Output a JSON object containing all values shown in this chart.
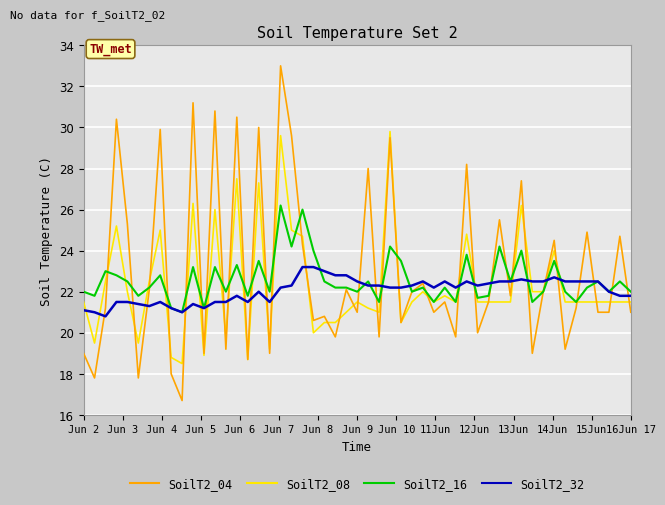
{
  "title": "Soil Temperature Set 2",
  "no_data_label": "No data for f_SoilT2_02",
  "tw_met_label": "TW_met",
  "xlabel": "Time",
  "ylabel": "Soil Temperature (C)",
  "ylim": [
    16,
    34
  ],
  "series_colors": {
    "SoilT2_04": "#FFA500",
    "SoilT2_08": "#FFE800",
    "SoilT2_16": "#00CC00",
    "SoilT2_32": "#0000BB"
  },
  "x_tick_labels": [
    "Jun 2",
    "Jun 3",
    "Jun 4",
    "Jun 5",
    "Jun 6",
    "Jun 7",
    "Jun 8",
    "Jun 9",
    "Jun 10",
    "11Jun",
    "12Jun",
    "13Jun",
    "14Jun",
    "15Jun",
    "16Jun 17"
  ],
  "SoilT2_04": [
    19.0,
    17.8,
    21.2,
    30.4,
    25.3,
    17.8,
    22.1,
    29.9,
    18.0,
    16.7,
    31.2,
    19.0,
    30.8,
    19.2,
    30.5,
    18.7,
    30.0,
    19.0,
    33.0,
    29.6,
    24.3,
    20.6,
    20.8,
    19.8,
    22.1,
    21.0,
    28.0,
    19.8,
    29.5,
    20.5,
    22.0,
    22.4,
    21.0,
    21.5,
    19.8,
    28.2,
    20.0,
    21.5,
    25.5,
    21.8,
    27.4,
    19.0,
    22.0,
    24.5,
    19.2,
    21.2,
    24.9,
    21.0,
    21.0,
    24.7,
    21.0
  ],
  "SoilT2_08": [
    21.5,
    19.5,
    22.5,
    25.2,
    22.0,
    19.5,
    22.5,
    25.0,
    18.8,
    18.5,
    26.3,
    18.9,
    26.0,
    19.8,
    27.5,
    18.7,
    27.3,
    19.2,
    29.6,
    25.0,
    24.7,
    20.0,
    20.5,
    20.5,
    21.0,
    21.5,
    21.2,
    21.0,
    29.8,
    20.5,
    21.5,
    22.0,
    21.5,
    21.8,
    21.5,
    24.8,
    21.5,
    21.5,
    21.5,
    21.5,
    26.2,
    22.0,
    22.0,
    24.0,
    21.5,
    21.5,
    21.5,
    21.5,
    21.5,
    21.5,
    21.5
  ],
  "SoilT2_16": [
    22.0,
    21.8,
    23.0,
    22.8,
    22.5,
    21.8,
    22.2,
    22.8,
    21.2,
    21.0,
    23.2,
    21.2,
    23.2,
    22.0,
    23.3,
    21.8,
    23.5,
    22.0,
    26.2,
    24.2,
    26.0,
    24.0,
    22.5,
    22.2,
    22.2,
    22.0,
    22.5,
    21.5,
    24.2,
    23.5,
    22.0,
    22.2,
    21.5,
    22.2,
    21.5,
    23.8,
    21.7,
    21.8,
    24.2,
    22.5,
    24.0,
    21.5,
    22.0,
    23.5,
    22.0,
    21.5,
    22.2,
    22.5,
    22.0,
    22.5,
    22.0
  ],
  "SoilT2_32": [
    21.1,
    21.0,
    20.8,
    21.5,
    21.5,
    21.4,
    21.3,
    21.5,
    21.2,
    21.0,
    21.4,
    21.2,
    21.5,
    21.5,
    21.8,
    21.5,
    22.0,
    21.5,
    22.2,
    22.3,
    23.2,
    23.2,
    23.0,
    22.8,
    22.8,
    22.5,
    22.3,
    22.3,
    22.2,
    22.2,
    22.3,
    22.5,
    22.2,
    22.5,
    22.2,
    22.5,
    22.3,
    22.4,
    22.5,
    22.5,
    22.6,
    22.5,
    22.5,
    22.7,
    22.5,
    22.5,
    22.5,
    22.5,
    22.0,
    21.8,
    21.8
  ]
}
